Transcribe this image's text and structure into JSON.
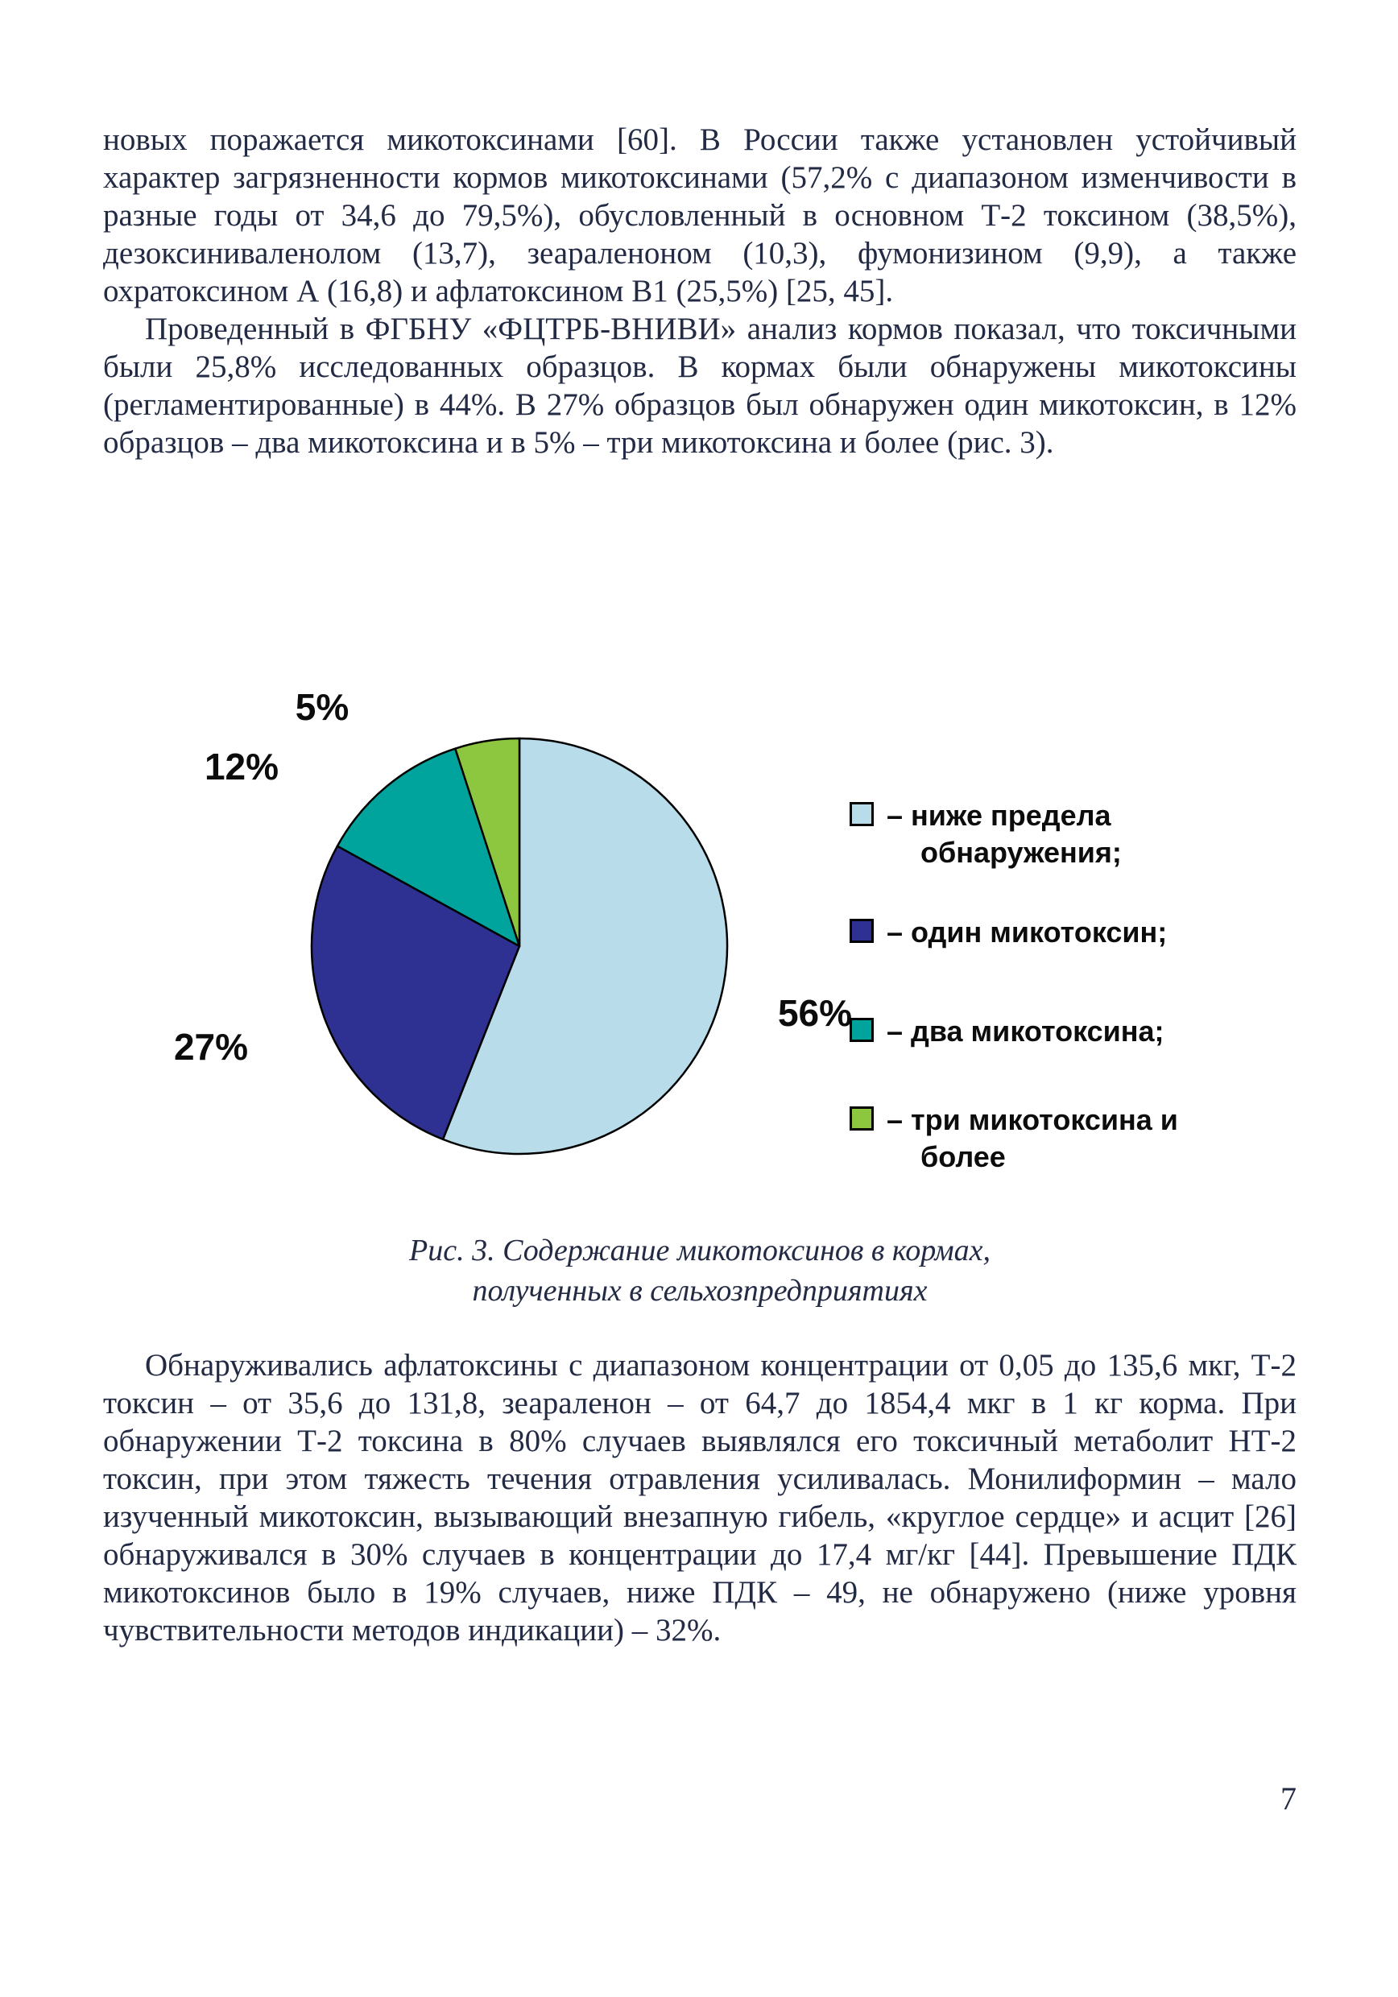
{
  "page": {
    "number": "7"
  },
  "content": {
    "p1": "новых поражается микотоксинами [60]. В России также установлен устойчивый характер загрязненности кормов микотоксинами (57,2% с диапазоном изменчивости в разные годы от 34,6 до 79,5%), обусловленный в основном Т-2 токсином (38,5%), дезоксиниваленолом (13,7), зеараленоном (10,3), фумонизином (9,9), а также охратоксином А (16,8) и афлатоксином В1 (25,5%) [25, 45].",
    "p2": "Проведенный в ФГБНУ «ФЦТРБ-ВНИВИ» анализ кормов показал, что токсичными были 25,8% исследованных образцов. В кормах были обнаружены микотоксины (регламентированные) в 44%. В 27% образцов был обнаружен один микотоксин, в 12% образцов – два микотоксина и в 5% – три микотоксина и более (рис. 3).",
    "p3": "Обнаруживались афлатоксины с диапазоном концентрации от 0,05 до 135,6 мкг, Т-2 токсин – от 35,6 до 131,8, зеараленон – от 64,7 до 1854,4 мкг в 1 кг корма. При обнаружении Т-2 токсина в 80% случаев выявлялся его токсичный метаболит НТ-2 токсин, при этом тяжесть течения отравления усиливалась. Монилиформин – мало изученный микотоксин, вызывающий внезапную гибель, «круглое сердце» и асцит [26] обнаруживался в 30% случаев в концентрации до 17,4 мг/кг [44]. Превышение ПДК микотоксинов было в 19% случаев, ниже ПДК – 49, не обнаружено (ниже уровня чувствительности методов индикации) – 32%."
  },
  "figure": {
    "caption_line1": "Рис. 3. Содержание микотоксинов в кормах,",
    "caption_line2": "полученных в сельхозпредприятиях"
  },
  "chart_data": {
    "type": "pie",
    "title": "Содержание микотоксинов в кормах, полученных в сельхозпредприятиях",
    "direction": "clockwise",
    "start_angle_deg": 0,
    "legend_position": "right",
    "stroke_color": "#000000",
    "slices": [
      {
        "label": "ниже предела обнаружения",
        "value": 56,
        "data_label": "56%",
        "legend_label": "– ниже предела обнаружения;",
        "color": "#b9dcea"
      },
      {
        "label": "один микотоксин",
        "value": 27,
        "data_label": "27%",
        "legend_label": "– один микотоксин;",
        "color": "#2e3192"
      },
      {
        "label": "два микотоксина",
        "value": 12,
        "data_label": "12%",
        "legend_label": "– два микотоксина;",
        "color": "#00a49c"
      },
      {
        "label": "три микотоксина и более",
        "value": 5,
        "data_label": "5%",
        "legend_label": "– три микотоксина и более",
        "color": "#8dc63f"
      }
    ]
  }
}
